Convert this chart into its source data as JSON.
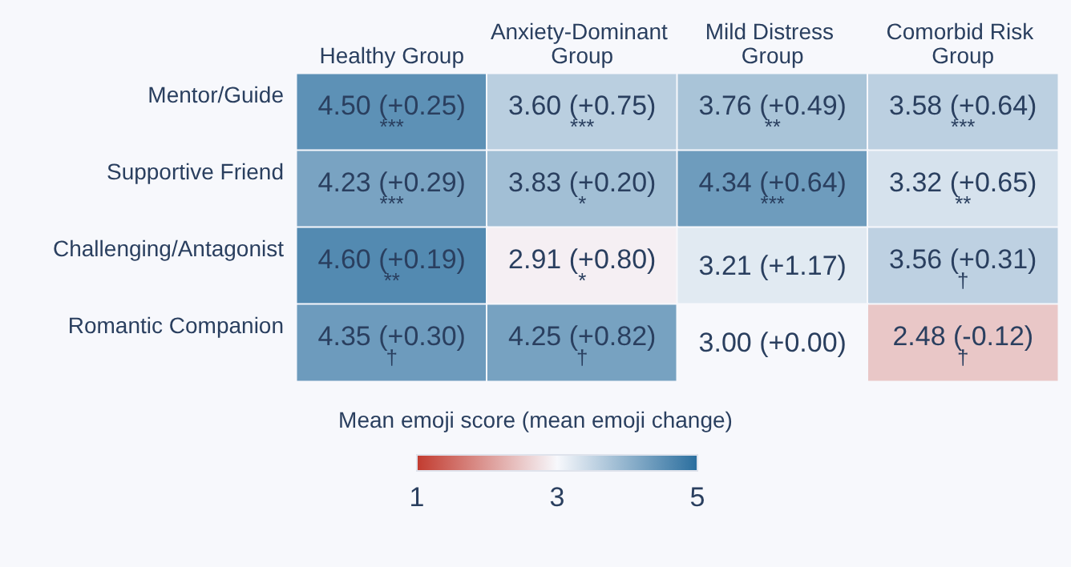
{
  "chart_data": {
    "type": "heatmap",
    "categories": [
      "Healthy Group",
      "Anxiety-Dominant Group",
      "Mild Distress Group",
      "Comorbid Risk Group"
    ],
    "y_categories": [
      "Mentor/Guide",
      "Supportive Friend",
      "Challenging/Antagonist",
      "Romantic Companion"
    ],
    "cells": [
      [
        4.5,
        3.6,
        3.76,
        3.58
      ],
      [
        4.23,
        3.83,
        4.34,
        3.32
      ],
      [
        4.6,
        2.91,
        3.21,
        3.56
      ],
      [
        4.35,
        4.25,
        3.0,
        2.48
      ]
    ],
    "cell_labels": [
      [
        "4.50 (+0.25)\n***",
        "3.60 (+0.75)\n***",
        "3.76 (+0.49)\n**",
        "3.58 (+0.64)\n***"
      ],
      [
        "4.23 (+0.29)\n***",
        "3.83 (+0.20)\n*",
        "4.34 (+0.64)\n***",
        "3.32 (+0.65)\n**"
      ],
      [
        "4.60 (+0.19)\n**",
        "2.91 (+0.80)\n*",
        "3.21 (+1.17)",
        "3.56 (+0.31)\n†"
      ],
      [
        "4.35 (+0.30)\n†",
        "4.25 (+0.82)\n†",
        "3.00 (+0.00)",
        "2.48 (-0.12)\n†"
      ]
    ],
    "clabel": "Mean emoji score (mean emoji change)",
    "clim": [
      1,
      5
    ],
    "cticks": [
      1,
      3,
      5
    ]
  }
}
